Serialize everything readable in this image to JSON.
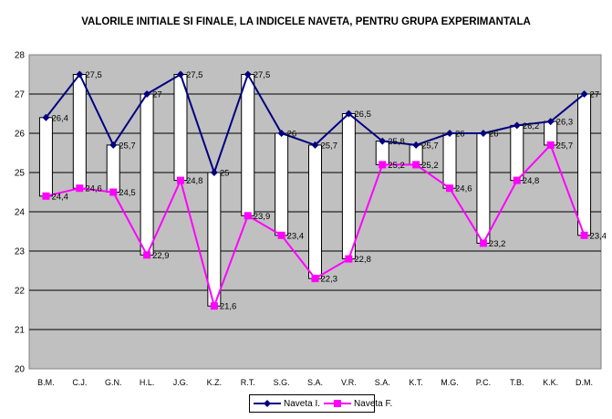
{
  "chart_data": {
    "type": "line",
    "title": "VALORILE INITIALE SI FINALE, LA INDICELE NAVETA, PENTRU GRUPA EXPERIMANTALA",
    "categories": [
      "B.M.",
      "C.J.",
      "G.N.",
      "H.L.",
      "J.G.",
      "K.Z.",
      "R.T.",
      "S.G.",
      "S.A.",
      "V.R.",
      "S.A.",
      "K.T.",
      "M.G.",
      "P.C.",
      "T.B.",
      "K.K.",
      "D.M."
    ],
    "series": [
      {
        "name": "Naveta I.",
        "color": "#000080",
        "marker": "diamond",
        "values": [
          26.4,
          27.5,
          25.7,
          27,
          27.5,
          25,
          27.5,
          26,
          25.7,
          26.5,
          25.8,
          25.7,
          26,
          26,
          26.2,
          26.3,
          27
        ],
        "labels": [
          "26,4",
          "27,5",
          "25,7",
          "27",
          "27,5",
          "25",
          "27,5",
          "26",
          "25,7",
          "26,5",
          "25,8",
          "25,7",
          "26",
          "26",
          "26,2",
          "26,3",
          "27"
        ]
      },
      {
        "name": "Naveta F.",
        "color": "#FF00FF",
        "marker": "square",
        "values": [
          24.4,
          24.6,
          24.5,
          22.9,
          24.8,
          21.6,
          23.9,
          23.4,
          22.3,
          22.8,
          25.2,
          25.2,
          24.6,
          23.2,
          24.8,
          25.7,
          23.4
        ],
        "labels": [
          "24,4",
          "24,6",
          "24,5",
          "22,9",
          "24,8",
          "21,6",
          "23,9",
          "23,4",
          "22,3",
          "22,8",
          "25,2",
          "25,2",
          "24,6",
          "23,2",
          "24,8",
          "25,7",
          "23,4"
        ]
      }
    ],
    "ylim": [
      20,
      28
    ],
    "yticks": [
      20,
      21,
      22,
      23,
      24,
      25,
      26,
      27,
      28
    ],
    "high_low_bars": true,
    "grid": true,
    "plot_background": "#C0C0C0",
    "legend_position": "bottom"
  }
}
